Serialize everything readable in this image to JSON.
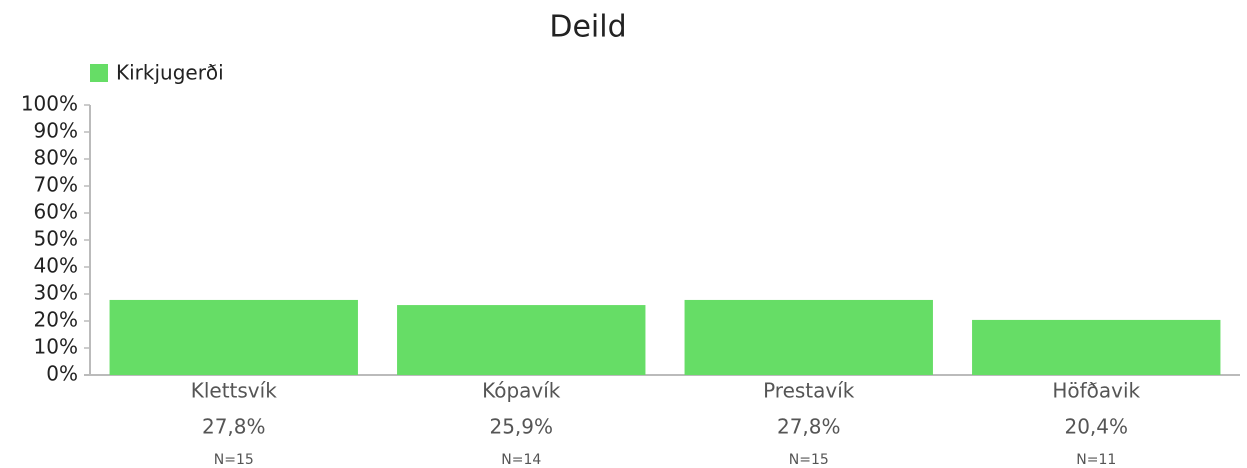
{
  "chart_data": {
    "type": "bar",
    "title": "Deild",
    "categories": [
      "Klettsvík",
      "Kópavík",
      "Prestavík",
      "Höfðavik"
    ],
    "series": [
      {
        "name": "Kirkjugerði",
        "color": "#66dd66",
        "values": [
          27.8,
          25.9,
          27.8,
          20.4
        ],
        "value_labels": [
          "27,8%",
          "25,9%",
          "27,8%",
          "20,4%"
        ]
      }
    ],
    "n_labels": [
      "N=15",
      "N=14",
      "N=15",
      "N=11"
    ],
    "ylim": [
      0,
      100
    ],
    "yticks": [
      {
        "value": 0,
        "label": "0%"
      },
      {
        "value": 10,
        "label": "10%"
      },
      {
        "value": 20,
        "label": "20%"
      },
      {
        "value": 30,
        "label": "30%"
      },
      {
        "value": 40,
        "label": "40%"
      },
      {
        "value": 50,
        "label": "50%"
      },
      {
        "value": 60,
        "label": "60%"
      },
      {
        "value": 70,
        "label": "70%"
      },
      {
        "value": 80,
        "label": "80%"
      },
      {
        "value": 90,
        "label": "90%"
      },
      {
        "value": 100,
        "label": "100%"
      }
    ],
    "legend": "top-left",
    "grid": false
  }
}
